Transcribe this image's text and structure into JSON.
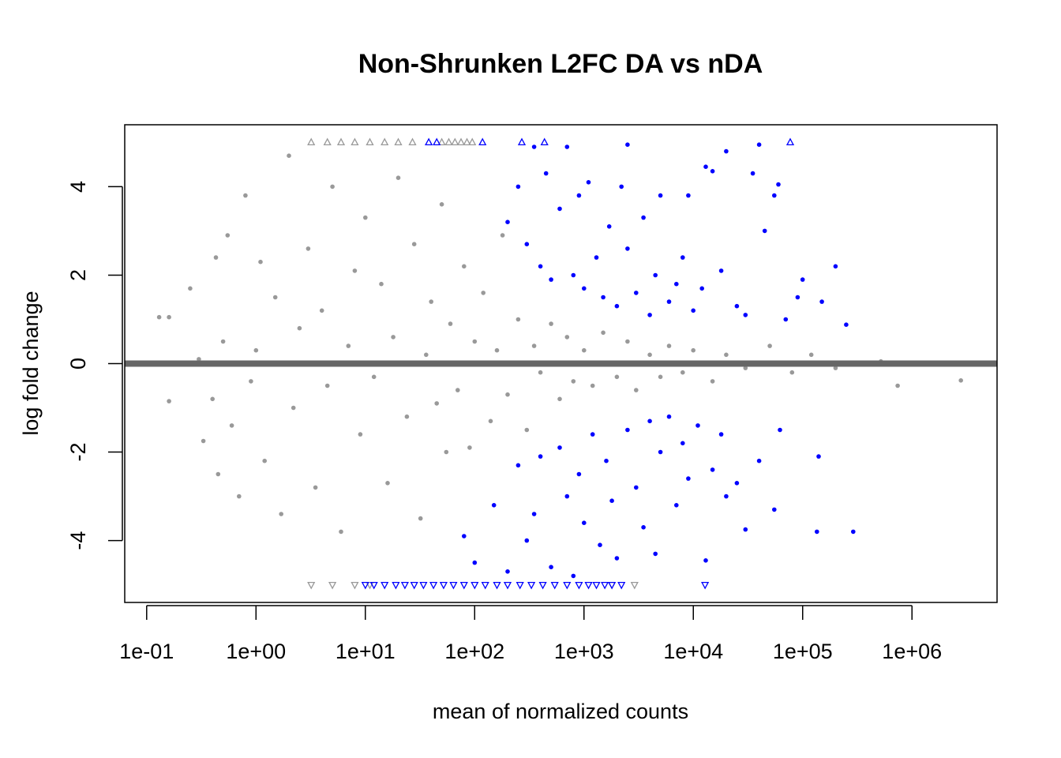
{
  "chart_data": {
    "type": "scatter",
    "title": "Non-Shrunken L2FC DA vs nDA",
    "xlabel": "mean of normalized counts",
    "ylabel": "log fold change",
    "x_scale": "log10",
    "xlim": [
      0.063,
      6000000
    ],
    "ylim": [
      -5.4,
      5.4
    ],
    "x_ticks": [
      {
        "value": 0.1,
        "label": "1e-01"
      },
      {
        "value": 1,
        "label": "1e+00"
      },
      {
        "value": 10,
        "label": "1e+01"
      },
      {
        "value": 100,
        "label": "1e+02"
      },
      {
        "value": 1000,
        "label": "1e+03"
      },
      {
        "value": 10000,
        "label": "1e+04"
      },
      {
        "value": 100000,
        "label": "1e+05"
      },
      {
        "value": 1000000,
        "label": "1e+06"
      }
    ],
    "y_ticks": [
      {
        "value": -4,
        "label": "-4"
      },
      {
        "value": -2,
        "label": "-2"
      },
      {
        "value": 0,
        "label": "0"
      },
      {
        "value": 2,
        "label": "2"
      },
      {
        "value": 4,
        "label": "4"
      }
    ],
    "reference_line": {
      "y": 0,
      "color": "#666666"
    },
    "grid": false,
    "legend": "none",
    "colors": {
      "not_significant": "#999999",
      "significant": "#0000ff"
    },
    "series": [
      {
        "color": "#999999",
        "marker": "point",
        "points": [
          [
            0.13,
            1.05
          ],
          [
            0.16,
            1.05
          ],
          [
            0.16,
            -0.85
          ],
          [
            0.25,
            1.7
          ],
          [
            0.3,
            0.1
          ],
          [
            0.33,
            -1.75
          ],
          [
            0.4,
            -0.8
          ],
          [
            0.43,
            2.4
          ],
          [
            0.45,
            -2.5
          ],
          [
            0.5,
            0.5
          ],
          [
            0.55,
            2.9
          ],
          [
            0.6,
            -1.4
          ],
          [
            0.7,
            -3.0
          ],
          [
            0.8,
            3.8
          ],
          [
            0.9,
            -0.4
          ],
          [
            1.0,
            0.3
          ],
          [
            1.1,
            2.3
          ],
          [
            1.2,
            -2.2
          ],
          [
            1.5,
            1.5
          ],
          [
            1.7,
            -3.4
          ],
          [
            2.0,
            4.7
          ],
          [
            2.2,
            -1.0
          ],
          [
            2.5,
            0.8
          ],
          [
            3,
            2.6
          ],
          [
            3.5,
            -2.8
          ],
          [
            4,
            1.2
          ],
          [
            4.5,
            -0.5
          ],
          [
            5,
            4.0
          ],
          [
            6,
            -3.8
          ],
          [
            7,
            0.4
          ],
          [
            8,
            2.1
          ],
          [
            9,
            -1.6
          ],
          [
            10,
            3.3
          ],
          [
            12,
            -0.3
          ],
          [
            14,
            1.8
          ],
          [
            16,
            -2.7
          ],
          [
            18,
            0.6
          ],
          [
            20,
            4.2
          ],
          [
            24,
            -1.2
          ],
          [
            28,
            2.7
          ],
          [
            32,
            -3.5
          ],
          [
            36,
            0.2
          ],
          [
            40,
            1.4
          ],
          [
            45,
            -0.9
          ],
          [
            50,
            3.6
          ],
          [
            55,
            -2.0
          ],
          [
            60,
            0.9
          ],
          [
            70,
            -0.6
          ],
          [
            80,
            2.2
          ],
          [
            90,
            -1.9
          ],
          [
            100,
            0.5
          ],
          [
            120,
            1.6
          ],
          [
            140,
            -1.3
          ],
          [
            160,
            0.3
          ],
          [
            180,
            2.9
          ],
          [
            200,
            -0.7
          ],
          [
            250,
            1.0
          ],
          [
            300,
            -1.5
          ],
          [
            350,
            0.4
          ],
          [
            400,
            -0.2
          ],
          [
            500,
            0.9
          ],
          [
            600,
            -0.8
          ],
          [
            700,
            0.6
          ],
          [
            800,
            -0.4
          ],
          [
            1000,
            0.3
          ],
          [
            1200,
            -0.5
          ],
          [
            1500,
            0.7
          ],
          [
            2000,
            -0.3
          ],
          [
            2500,
            0.5
          ],
          [
            3000,
            -0.6
          ],
          [
            4000,
            0.2
          ],
          [
            5000,
            -0.3
          ],
          [
            6000,
            0.4
          ],
          [
            8000,
            -0.2
          ],
          [
            10000,
            0.3
          ],
          [
            15000,
            -0.4
          ],
          [
            20000,
            0.2
          ],
          [
            30000,
            -0.1
          ],
          [
            50000,
            0.4
          ],
          [
            80000,
            -0.2
          ],
          [
            120000,
            0.2
          ],
          [
            200000,
            -0.1
          ],
          [
            520000,
            0.05
          ],
          [
            740000,
            -0.5
          ],
          [
            2800000,
            -0.38
          ]
        ]
      },
      {
        "color": "#0000ff",
        "marker": "point",
        "points": [
          [
            200,
            3.2
          ],
          [
            250,
            4.0
          ],
          [
            300,
            2.7
          ],
          [
            350,
            4.9
          ],
          [
            400,
            2.2
          ],
          [
            450,
            4.3
          ],
          [
            500,
            1.9
          ],
          [
            600,
            3.5
          ],
          [
            700,
            4.9
          ],
          [
            800,
            2.0
          ],
          [
            900,
            3.8
          ],
          [
            1000,
            1.7
          ],
          [
            1100,
            4.1
          ],
          [
            1300,
            2.4
          ],
          [
            1500,
            1.5
          ],
          [
            1700,
            3.1
          ],
          [
            2000,
            1.3
          ],
          [
            2200,
            4.0
          ],
          [
            2500,
            2.6
          ],
          [
            2500,
            4.95
          ],
          [
            3000,
            1.6
          ],
          [
            3500,
            3.3
          ],
          [
            4000,
            1.1
          ],
          [
            4500,
            2.0
          ],
          [
            5000,
            3.8
          ],
          [
            6000,
            1.4
          ],
          [
            7000,
            1.8
          ],
          [
            8000,
            2.4
          ],
          [
            9000,
            3.8
          ],
          [
            10000,
            1.2
          ],
          [
            12000,
            1.7
          ],
          [
            13000,
            4.45
          ],
          [
            15000,
            4.35
          ],
          [
            18000,
            2.1
          ],
          [
            20000,
            4.8
          ],
          [
            25000,
            1.3
          ],
          [
            30000,
            1.1
          ],
          [
            35000,
            4.3
          ],
          [
            40000,
            4.95
          ],
          [
            45000,
            3.0
          ],
          [
            55000,
            3.8
          ],
          [
            60000,
            4.05
          ],
          [
            70000,
            1.0
          ],
          [
            90000,
            1.5
          ],
          [
            100000,
            1.9
          ],
          [
            150000,
            1.4
          ],
          [
            200000,
            2.2
          ],
          [
            250000,
            0.88
          ],
          [
            80,
            -3.9
          ],
          [
            100,
            -4.5
          ],
          [
            150,
            -3.2
          ],
          [
            200,
            -4.7
          ],
          [
            250,
            -2.3
          ],
          [
            300,
            -4.0
          ],
          [
            350,
            -3.4
          ],
          [
            400,
            -2.1
          ],
          [
            500,
            -4.6
          ],
          [
            600,
            -1.9
          ],
          [
            700,
            -3.0
          ],
          [
            800,
            -4.8
          ],
          [
            900,
            -2.5
          ],
          [
            1000,
            -3.6
          ],
          [
            1200,
            -1.6
          ],
          [
            1400,
            -4.1
          ],
          [
            1600,
            -2.2
          ],
          [
            1800,
            -3.1
          ],
          [
            2000,
            -4.4
          ],
          [
            2500,
            -1.5
          ],
          [
            3000,
            -2.8
          ],
          [
            3500,
            -3.7
          ],
          [
            4000,
            -1.3
          ],
          [
            4500,
            -4.3
          ],
          [
            5000,
            -2.0
          ],
          [
            6000,
            -1.2
          ],
          [
            7000,
            -3.2
          ],
          [
            8000,
            -1.8
          ],
          [
            9000,
            -2.6
          ],
          [
            11000,
            -1.4
          ],
          [
            13000,
            -4.45
          ],
          [
            15000,
            -2.4
          ],
          [
            18000,
            -1.6
          ],
          [
            20000,
            -3.0
          ],
          [
            25000,
            -2.7
          ],
          [
            30000,
            -3.75
          ],
          [
            40000,
            -2.2
          ],
          [
            55000,
            -3.3
          ],
          [
            62000,
            -1.5
          ],
          [
            140000,
            -2.1
          ],
          [
            135000,
            -3.8
          ],
          [
            290000,
            -3.8
          ]
        ]
      }
    ],
    "clipped_markers": [
      {
        "y": 5,
        "symbol": "triangle-up",
        "color": "#999999",
        "x": [
          3.2,
          4.5,
          6,
          8,
          11,
          15,
          20,
          27,
          50,
          58,
          66,
          75,
          85,
          95
        ]
      },
      {
        "y": 5,
        "symbol": "triangle-up",
        "color": "#0000ff",
        "x": [
          38,
          45,
          118,
          270,
          435,
          77000
        ]
      },
      {
        "y": -5,
        "symbol": "triangle-down",
        "color": "#999999",
        "x": [
          3.2,
          5,
          8,
          11,
          1800,
          2900
        ]
      },
      {
        "y": -5,
        "symbol": "triangle-down",
        "color": "#0000ff",
        "x": [
          10,
          12,
          15,
          19,
          23,
          28,
          34,
          42,
          52,
          64,
          80,
          100,
          125,
          160,
          200,
          260,
          330,
          420,
          540,
          700,
          900,
          1100,
          1300,
          1550,
          1800,
          2200,
          12800
        ]
      }
    ]
  }
}
